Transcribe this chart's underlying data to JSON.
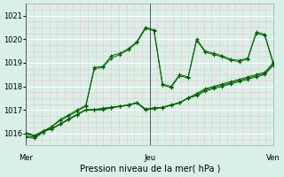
{
  "title": "Pression niveau de la mer( hPa )",
  "bg_color": "#d8f0e8",
  "plot_bg_color": "#d8f0e8",
  "grid_color_major": "#ffffff",
  "grid_color_minor": "#e8f8f0",
  "line_color": "#006600",
  "marker_color": "#006600",
  "day_line_color": "#555566",
  "ylim": [
    1015.5,
    1021.5
  ],
  "yticks": [
    1016,
    1017,
    1018,
    1019,
    1020,
    1021
  ],
  "day_positions": [
    0.0,
    8.0,
    16.0
  ],
  "day_labels": [
    "Mer",
    "Jeu",
    "Ven"
  ],
  "series": [
    [
      1015.9,
      1015.85,
      1016.1,
      1016.3,
      1016.6,
      1016.8,
      1017.0,
      1017.2,
      1018.8,
      1018.85,
      1019.3,
      1019.4,
      1019.6,
      1019.9,
      1020.5,
      1020.4,
      1018.1,
      1018.0,
      1018.5,
      1018.4,
      1020.0,
      1019.5,
      1019.4,
      1019.3,
      1019.15,
      1019.1,
      1019.2,
      1020.3,
      1020.2,
      1019.0
    ],
    [
      1015.85,
      1015.8,
      1016.05,
      1016.3,
      1016.55,
      1016.75,
      1016.95,
      1017.15,
      1018.75,
      1018.8,
      1019.2,
      1019.35,
      1019.55,
      1019.85,
      1020.45,
      1020.35,
      1018.05,
      1017.95,
      1018.45,
      1018.35,
      1019.95,
      1019.45,
      1019.35,
      1019.25,
      1019.1,
      1019.05,
      1019.15,
      1020.25,
      1020.15,
      1018.95
    ],
    [
      1016.0,
      1015.9,
      1016.1,
      1016.2,
      1016.4,
      1016.6,
      1016.8,
      1017.0,
      1017.0,
      1017.05,
      1017.1,
      1017.15,
      1017.2,
      1017.3,
      1017.0,
      1017.1,
      1017.1,
      1017.2,
      1017.3,
      1017.5,
      1017.7,
      1017.9,
      1018.0,
      1018.1,
      1018.2,
      1018.3,
      1018.4,
      1018.5,
      1018.6,
      1019.0
    ],
    [
      1016.0,
      1015.9,
      1016.1,
      1016.2,
      1016.4,
      1016.6,
      1016.8,
      1017.0,
      1017.0,
      1017.0,
      1017.1,
      1017.15,
      1017.2,
      1017.3,
      1017.0,
      1017.05,
      1017.1,
      1017.2,
      1017.3,
      1017.5,
      1017.6,
      1017.8,
      1017.9,
      1018.0,
      1018.1,
      1018.2,
      1018.3,
      1018.4,
      1018.5,
      1018.9
    ],
    [
      1016.05,
      1015.92,
      1016.12,
      1016.22,
      1016.42,
      1016.62,
      1016.82,
      1017.02,
      1017.02,
      1017.08,
      1017.12,
      1017.17,
      1017.22,
      1017.32,
      1017.05,
      1017.08,
      1017.12,
      1017.22,
      1017.32,
      1017.52,
      1017.65,
      1017.85,
      1017.95,
      1018.05,
      1018.15,
      1018.25,
      1018.35,
      1018.45,
      1018.55,
      1018.95
    ]
  ]
}
